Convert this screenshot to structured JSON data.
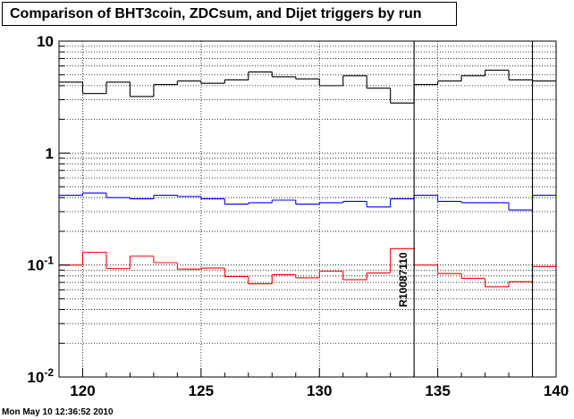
{
  "chart_data": {
    "type": "line",
    "title": "Comparison of BHT3coin, ZDCsum, and Dijet triggers by run",
    "xlabel": "",
    "ylabel": "",
    "xlim": [
      119,
      140
    ],
    "ylim": [
      0.01,
      10
    ],
    "yscale": "log",
    "grid": true,
    "x_ticks": [
      "120",
      "125",
      "130",
      "135",
      "140"
    ],
    "y_ticks": [
      {
        "base": "10",
        "exp": "-2"
      },
      {
        "base": "10",
        "exp": "-1"
      },
      {
        "base": "1",
        "exp": ""
      },
      {
        "base": "10",
        "exp": ""
      }
    ],
    "x_bins": [
      119,
      120,
      121,
      122,
      123,
      124,
      125,
      126,
      127,
      128,
      129,
      130,
      131,
      132,
      133,
      134,
      135,
      136,
      137,
      138,
      139,
      140
    ],
    "series": [
      {
        "color": "#000000",
        "values": [
          4.3,
          3.4,
          4.3,
          3.2,
          4.1,
          4.4,
          4.2,
          4.5,
          5.3,
          4.8,
          4.6,
          4.0,
          4.9,
          3.8,
          2.8,
          4.1,
          4.4,
          4.9,
          5.5,
          4.5,
          4.4
        ]
      },
      {
        "color": "#0000ff",
        "values": [
          0.42,
          0.44,
          0.4,
          0.39,
          0.42,
          0.41,
          0.39,
          0.35,
          0.36,
          0.38,
          0.35,
          0.36,
          0.37,
          0.33,
          0.39,
          0.42,
          0.37,
          0.36,
          0.36,
          0.31,
          0.42
        ]
      },
      {
        "color": "#ff0000",
        "values": [
          0.1,
          0.13,
          0.093,
          0.12,
          0.105,
          0.092,
          0.094,
          0.079,
          0.068,
          0.082,
          0.077,
          0.088,
          0.074,
          0.085,
          0.14,
          0.1,
          0.084,
          0.076,
          0.064,
          0.071,
          0.097
        ]
      }
    ],
    "markers": [
      {
        "x": 134,
        "label": "R10087110"
      },
      {
        "x": 139,
        "label": ""
      }
    ]
  },
  "footer": {
    "timestamp": "Mon May 10 12:36:52 2010"
  }
}
